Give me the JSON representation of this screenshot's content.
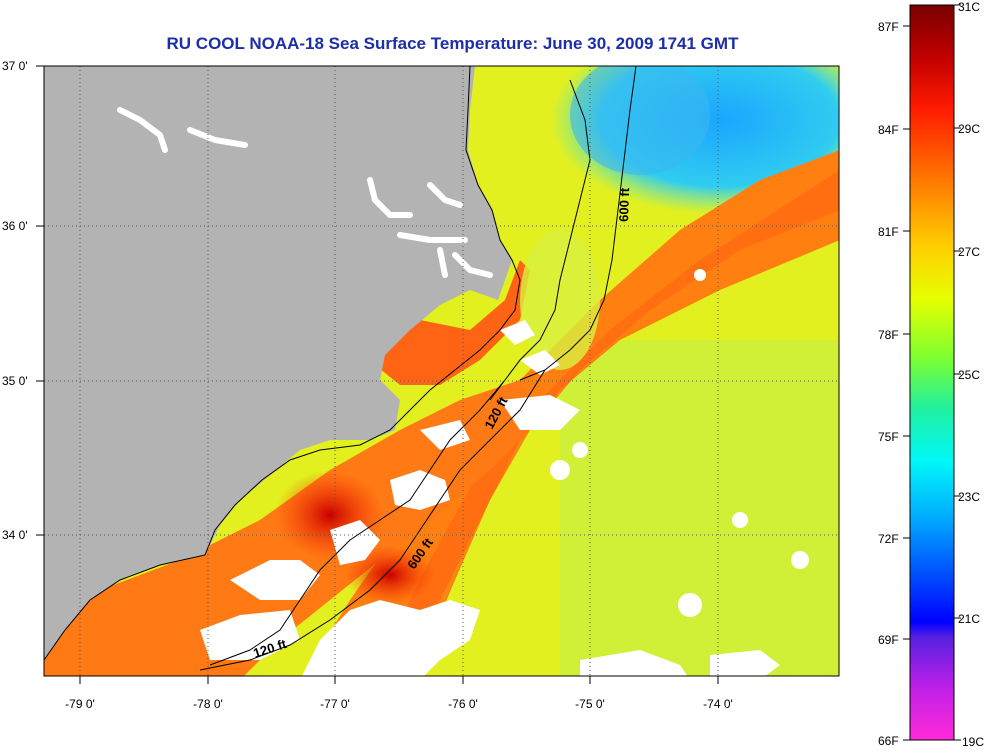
{
  "title": "RU COOL  NOAA-18  Sea Surface Temperature:  June 30, 2009 1741 GMT",
  "map": {
    "lon_labels": [
      "-79 0'",
      "-78 0'",
      "-77 0'",
      "-76 0'",
      "-75 0'",
      "-74 0'"
    ],
    "lat_labels": [
      "37 0'",
      "36 0'",
      "35 0'",
      "34 0'"
    ],
    "contours": [
      "600 ft",
      "120 ft",
      "600 ft",
      "120 ft"
    ]
  },
  "colorbar": {
    "f_labels": [
      "87F",
      "84F",
      "81F",
      "78F",
      "75F",
      "72F",
      "69F",
      "66F"
    ],
    "c_labels": [
      "31C",
      "29C",
      "27C",
      "25C",
      "23C",
      "21C",
      "19C"
    ]
  },
  "colors": {
    "title": "#1c2ea8",
    "land": "#b3b3b3",
    "cloud": "#ffffff"
  }
}
